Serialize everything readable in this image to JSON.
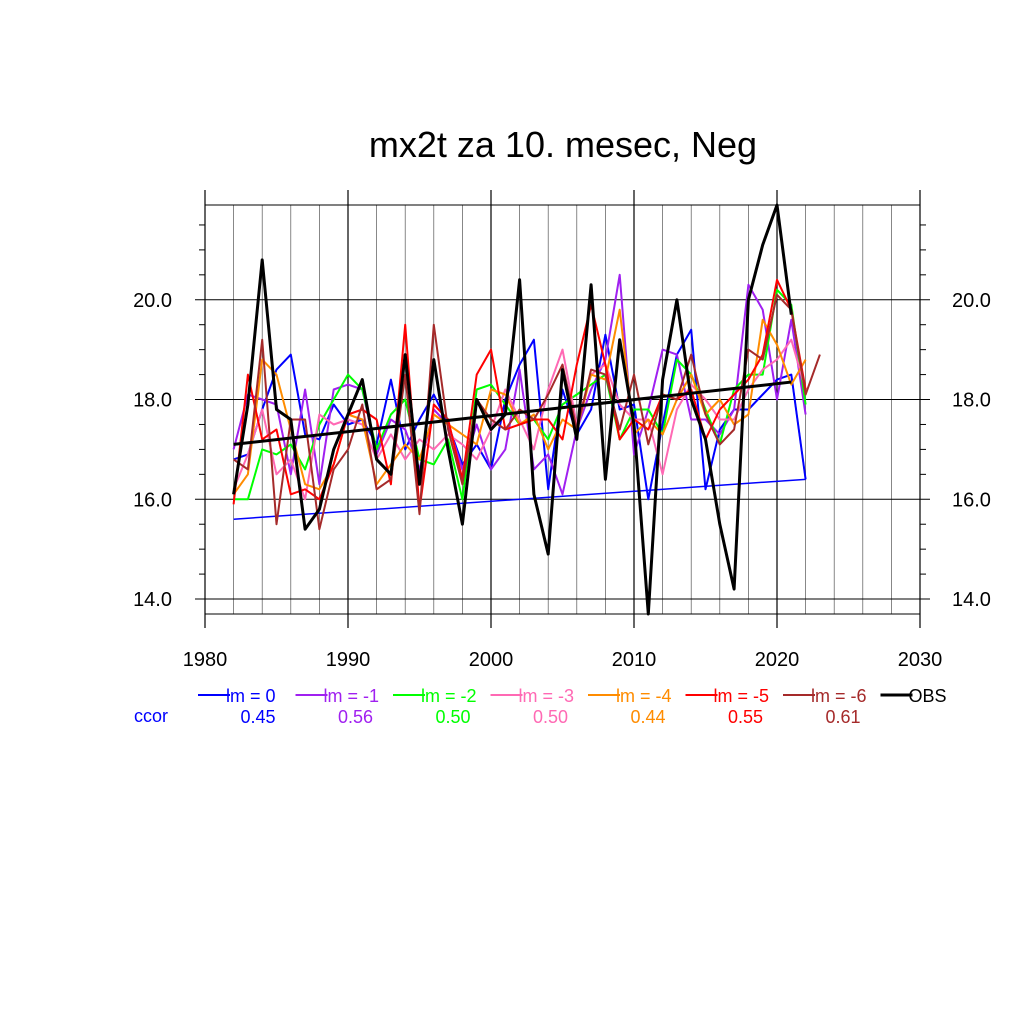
{
  "chart_data": {
    "type": "line",
    "title": "mx2t za 10. mesec, Neg",
    "xlim": [
      1980,
      2030
    ],
    "ylim": [
      13.7,
      21.9
    ],
    "x_ticks": [
      "1980",
      "1990",
      "2000",
      "2010",
      "2020",
      "2030"
    ],
    "y_ticks": [
      "14.0",
      "16.0",
      "18.0",
      "20.0"
    ],
    "correlation_label": "ccor",
    "series": [
      {
        "name": "lm = 0",
        "color": "#0000ff",
        "ccor": "0.45",
        "x0": 1982,
        "values": [
          16.8,
          16.9,
          17.8,
          18.6,
          18.9,
          17.3,
          17.2,
          17.9,
          17.5,
          17.6,
          17.1,
          18.4,
          17.0,
          17.6,
          18.1,
          17.5,
          16.7,
          17.1,
          16.6,
          18.0,
          18.7,
          19.2,
          16.2,
          18.2,
          17.3,
          17.8,
          19.3,
          17.8,
          17.9,
          16.0,
          17.5,
          18.9,
          19.4,
          16.2,
          17.4,
          17.8,
          17.8,
          18.1,
          18.4,
          18.5,
          16.4
        ],
        "trend": [
          15.6,
          16.4
        ]
      },
      {
        "name": "lm = -1",
        "color": "#a020f0",
        "ccor": "0.56",
        "x0": 1982,
        "values": [
          17.0,
          18.1,
          18.0,
          17.9,
          16.5,
          18.2,
          16.3,
          18.2,
          18.3,
          18.2,
          16.9,
          17.6,
          17.4,
          16.6,
          17.8,
          17.5,
          16.6,
          17.5,
          16.6,
          17.0,
          18.6,
          16.6,
          16.9,
          16.1,
          17.4,
          18.2,
          18.8,
          20.5,
          16.9,
          17.8,
          19.0,
          18.9,
          17.6,
          17.6,
          17.3,
          17.8,
          20.3,
          19.8,
          18.0,
          19.6,
          17.7
        ],
        "trend": null
      },
      {
        "name": "lm = -2",
        "color": "#00ff00",
        "ccor": "0.50",
        "x0": 1982,
        "values": [
          16.0,
          16.0,
          17.0,
          16.9,
          17.1,
          16.6,
          17.5,
          18.0,
          18.5,
          18.2,
          17.0,
          17.7,
          18.0,
          16.8,
          16.7,
          17.2,
          16.0,
          18.2,
          18.3,
          17.9,
          17.5,
          17.6,
          17.2,
          17.9,
          18.1,
          18.3,
          18.5,
          17.2,
          17.8,
          17.8,
          17.3,
          18.8,
          18.5,
          17.8,
          17.1,
          18.2,
          18.5,
          18.5,
          20.2,
          19.9,
          17.9
        ],
        "trend": null
      },
      {
        "name": "lm = -3",
        "color": "#ff69b4",
        "ccor": "0.50",
        "x0": 1982,
        "values": [
          16.2,
          16.9,
          17.8,
          16.5,
          16.8,
          16.0,
          17.7,
          17.5,
          17.6,
          17.5,
          16.8,
          17.3,
          16.8,
          17.2,
          17.0,
          17.3,
          17.1,
          16.8,
          17.4,
          18.2,
          17.6,
          17.0,
          18.2,
          19.0,
          17.5,
          18.5,
          18.7,
          17.9,
          17.6,
          17.6,
          16.5,
          17.8,
          18.3,
          18.0,
          17.6,
          17.6,
          18.2,
          18.6,
          18.8,
          19.2,
          18.2
        ],
        "trend": null
      },
      {
        "name": "lm = -4",
        "color": "#ff8c00",
        "ccor": "0.44",
        "x0": 1982,
        "values": [
          16.1,
          16.5,
          18.8,
          18.5,
          17.4,
          16.3,
          16.2,
          16.7,
          17.7,
          17.6,
          16.3,
          16.7,
          17.1,
          16.8,
          17.7,
          17.5,
          17.3,
          17.1,
          18.2,
          18.1,
          17.5,
          17.7,
          17.0,
          17.6,
          17.4,
          18.5,
          18.4,
          19.8,
          17.3,
          17.6,
          17.3,
          18.0,
          18.5,
          17.7,
          18.0,
          17.5,
          17.7,
          19.6,
          19.1,
          18.3,
          18.8
        ],
        "trend": null
      },
      {
        "name": "lm = -5",
        "color": "#ff0000",
        "ccor": "0.55",
        "x0": 1982,
        "values": [
          15.9,
          18.5,
          17.2,
          17.4,
          16.1,
          16.2,
          16.0,
          16.7,
          17.7,
          17.8,
          17.6,
          16.3,
          19.5,
          15.8,
          17.9,
          17.6,
          16.4,
          18.5,
          19.0,
          17.4,
          17.5,
          17.6,
          17.6,
          17.2,
          18.7,
          19.9,
          18.7,
          17.2,
          17.6,
          17.4,
          18.1,
          18.0,
          18.2,
          17.2,
          17.8,
          18.1,
          18.4,
          18.9,
          20.4,
          19.8,
          18.2
        ],
        "trend": null
      },
      {
        "name": "lm = -6",
        "color": "#a52a2a",
        "ccor": "0.61",
        "x0": 1982,
        "values": [
          16.8,
          16.6,
          19.2,
          15.5,
          17.6,
          17.6,
          15.4,
          16.6,
          17.0,
          17.9,
          16.2,
          16.4,
          18.5,
          15.7,
          19.5,
          17.4,
          16.3,
          18.0,
          17.6,
          17.4,
          17.8,
          17.6,
          18.1,
          18.7,
          17.4,
          18.6,
          18.5,
          17.4,
          18.5,
          17.1,
          18.1,
          18.0,
          18.9,
          17.7,
          17.1,
          17.4,
          19.0,
          18.8,
          20.1,
          19.8,
          18.1,
          18.9
        ],
        "trend": null
      },
      {
        "name": "OBS",
        "color": "#000000",
        "ccor": "",
        "x0": 1982,
        "values": [
          16.1,
          17.9,
          20.8,
          17.8,
          17.6,
          15.4,
          15.8,
          17.0,
          17.7,
          18.4,
          16.8,
          16.5,
          18.9,
          16.3,
          18.8,
          17.0,
          15.5,
          18.0,
          17.4,
          17.7,
          20.4,
          16.1,
          14.9,
          18.6,
          17.2,
          20.3,
          16.4,
          19.2,
          17.5,
          13.7,
          18.4,
          20.0,
          18.0,
          17.2,
          15.5,
          14.2,
          20.0,
          21.1,
          21.9,
          19.7
        ],
        "trend": [
          17.1,
          18.35
        ]
      }
    ]
  }
}
